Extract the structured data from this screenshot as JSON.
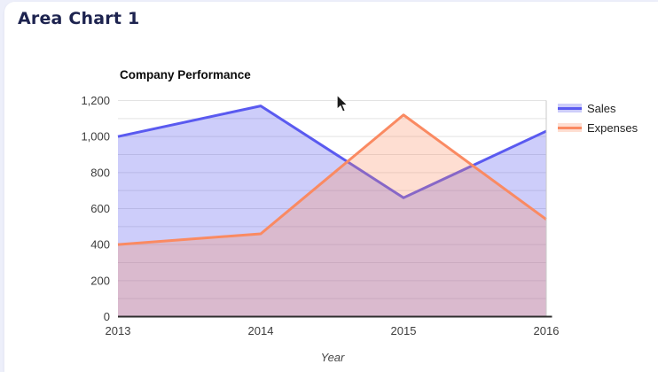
{
  "page": {
    "title": "Area Chart 1"
  },
  "chart_data": {
    "type": "area",
    "title": "Company Performance",
    "xlabel": "Year",
    "ylabel": "",
    "categories": [
      "2013",
      "2014",
      "2015",
      "2016"
    ],
    "series": [
      {
        "name": "Sales",
        "values": [
          1000,
          1170,
          660,
          1030
        ],
        "line_color": "#5a5af0",
        "fill_color": "rgba(90,90,238,0.30)"
      },
      {
        "name": "Expenses",
        "values": [
          400,
          460,
          1120,
          540
        ],
        "line_color": "#fa8a62",
        "fill_color": "rgba(250,138,95,0.28)"
      }
    ],
    "ylim": [
      0,
      1200
    ],
    "ytick_step": 200,
    "grid_step": 100,
    "grid": true,
    "legend_position": "right",
    "ytick_labels": [
      "0",
      "200",
      "400",
      "600",
      "800",
      "1,000",
      "1,200"
    ]
  },
  "colors": {
    "page_background": "#edeffa",
    "card_background": "#ffffff",
    "page_title": "#1d234f",
    "chart_title": "#0b0b0b",
    "axis_text": "#3d3d3d",
    "gridline": "#e3e3e3",
    "plot_right_border": "#c9c9c9",
    "baseline_axis": "#2e2e2e",
    "legend_text": "#222222"
  }
}
